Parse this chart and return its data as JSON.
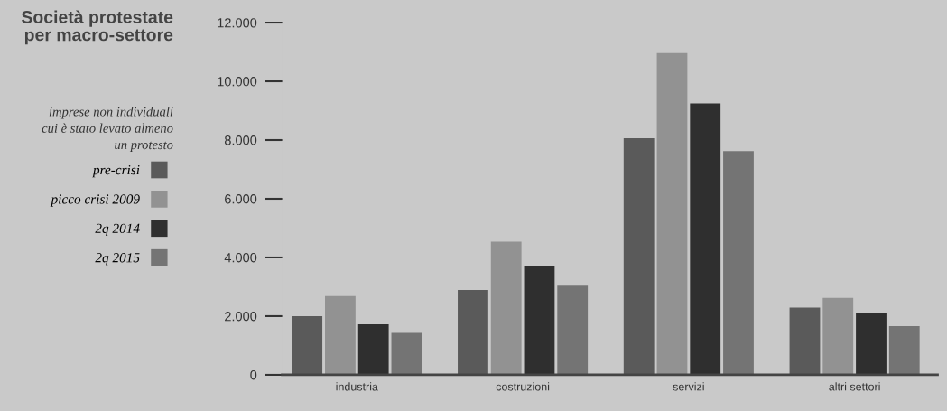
{
  "chart_data": {
    "type": "bar",
    "title": "Società protestate\nper macro-settore",
    "subtitle": "imprese non individuali\ncui è stato levato almeno\nun protesto",
    "categories": [
      "industria",
      "costruzioni",
      "servizi",
      "altri settori"
    ],
    "series": [
      {
        "name": "pre-crisi",
        "color": "#5a5a5a",
        "values": [
          2000,
          2890,
          8060,
          2290
        ]
      },
      {
        "name": "picco crisi 2009",
        "color": "#929292",
        "values": [
          2680,
          4540,
          10960,
          2620
        ]
      },
      {
        "name": "2q 2014",
        "color": "#2f2f2f",
        "values": [
          1720,
          3710,
          9250,
          2110
        ]
      },
      {
        "name": "2q 2015",
        "color": "#747474",
        "values": [
          1430,
          3040,
          7620,
          1660
        ]
      }
    ],
    "ylim": [
      0,
      12000
    ],
    "yticks": [
      0,
      {
        "value": 2000,
        "label": "2.000"
      },
      {
        "value": 4000,
        "label": "4.000"
      },
      {
        "value": 6000,
        "label": "6.000"
      },
      {
        "value": 8000,
        "label": "8.000"
      },
      {
        "value": 10000,
        "label": "10.000"
      },
      {
        "value": 12000,
        "label": "12.000"
      }
    ],
    "legend": "left",
    "grid": false
  }
}
